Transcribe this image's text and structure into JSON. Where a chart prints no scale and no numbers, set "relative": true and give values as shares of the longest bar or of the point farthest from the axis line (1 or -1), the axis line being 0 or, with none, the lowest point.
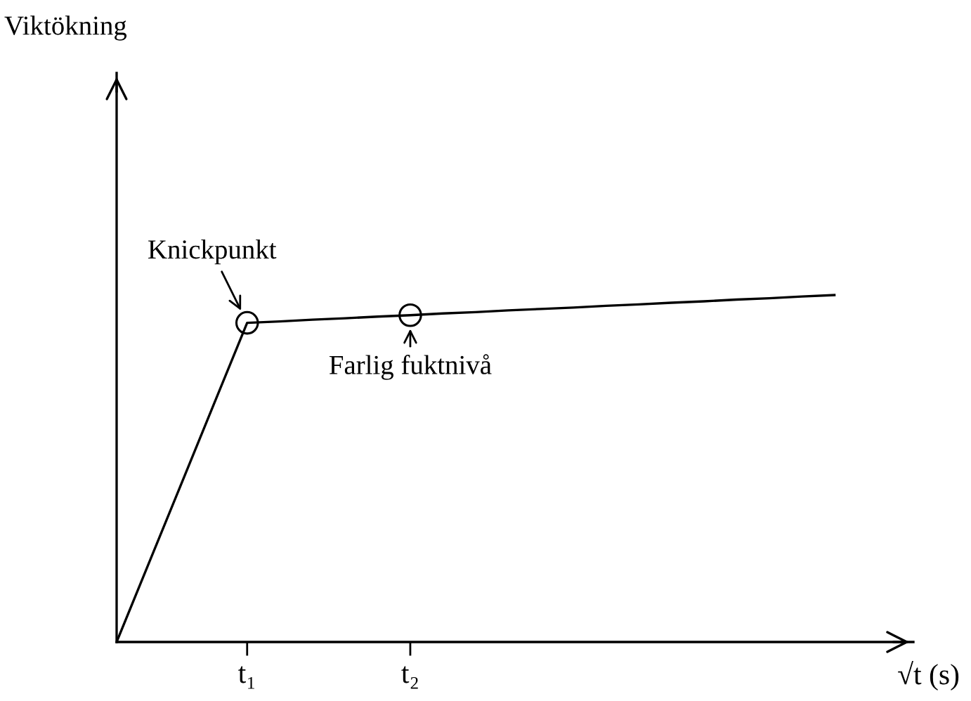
{
  "chart_data": {
    "type": "line",
    "relative": true,
    "xlabel": "√t (s)",
    "categories": [
      null,
      null,
      null,
      null,
      "t₁",
      null,
      null,
      null,
      null,
      "t₂",
      null,
      null,
      null,
      null,
      null,
      null,
      null,
      null,
      null,
      null,
      null,
      null,
      null
    ],
    "series": [
      {
        "color": "#000000",
        "values": [
          0,
          0.23,
          0.46,
          0.69,
          0.92,
          0.924,
          0.929,
          0.933,
          0.938,
          0.942,
          0.947,
          0.951,
          0.956,
          0.96,
          0.964,
          0.969,
          0.973,
          0.978,
          0.982,
          0.987,
          0.991,
          0.996,
          1
        ]
      }
    ],
    "annotations": [
      {
        "text": "Knickpunkt",
        "x": "t₁",
        "y": 0.92
      },
      {
        "text": "Farlig fuktnivå",
        "x": "t₂",
        "y": 0.942
      },
      "Viktökning"
    ],
    "marker": "none",
    "line_style": "solid"
  }
}
